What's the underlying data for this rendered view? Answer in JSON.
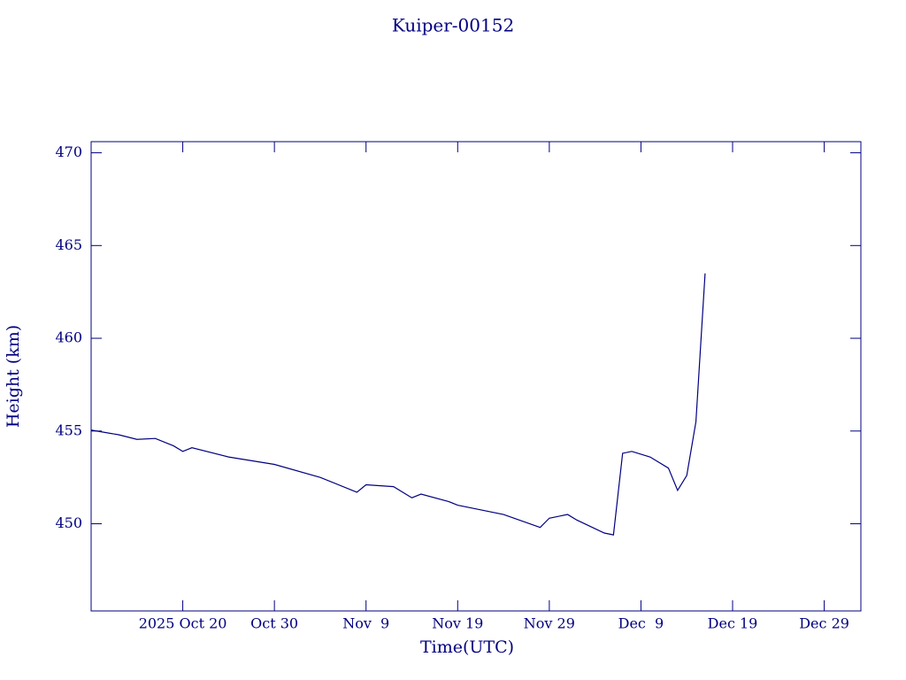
{
  "chart_data": {
    "type": "line",
    "title": "Kuiper-00152",
    "x_label": "Time(UTC)",
    "y_label": "Height (km)",
    "x": [
      "2025-10-10",
      "2025-10-13",
      "2025-10-15",
      "2025-10-17",
      "2025-10-19",
      "2025-10-20",
      "2025-10-21",
      "2025-10-25",
      "2025-10-30",
      "2025-11-04",
      "2025-11-08",
      "2025-11-09",
      "2025-11-12",
      "2025-11-14",
      "2025-11-15",
      "2025-11-18",
      "2025-11-19",
      "2025-11-24",
      "2025-11-28",
      "2025-11-29",
      "2025-12-01",
      "2025-12-02",
      "2025-12-05",
      "2025-12-06",
      "2025-12-07",
      "2025-12-08",
      "2025-12-10",
      "2025-12-12",
      "2025-12-13",
      "2025-12-14",
      "2025-12-15",
      "2025-12-16"
    ],
    "series": [
      {
        "name": "Height",
        "color": "#000080",
        "values": [
          455.05,
          454.8,
          454.55,
          454.6,
          454.2,
          453.9,
          454.1,
          453.6,
          453.2,
          452.5,
          451.7,
          452.1,
          452.0,
          451.4,
          451.6,
          451.2,
          451.0,
          450.5,
          449.8,
          450.3,
          450.5,
          450.2,
          449.5,
          449.4,
          453.8,
          453.9,
          453.6,
          453.0,
          451.8,
          452.6,
          455.5,
          463.5
        ]
      }
    ],
    "xlim": [
      "2025-10-10",
      "2026-01-02"
    ],
    "xticks": [
      {
        "value": "2025-10-20",
        "label": "2025 Oct 20"
      },
      {
        "value": "2025-10-30",
        "label": "Oct 30"
      },
      {
        "value": "2025-11-09",
        "label": "Nov  9"
      },
      {
        "value": "2025-11-19",
        "label": "Nov 19"
      },
      {
        "value": "2025-11-29",
        "label": "Nov 29"
      },
      {
        "value": "2025-12-09",
        "label": "Dec  9"
      },
      {
        "value": "2025-12-19",
        "label": "Dec 19"
      },
      {
        "value": "2025-12-29",
        "label": "Dec 29"
      }
    ],
    "ylim": [
      445.3,
      470.6
    ],
    "yticks": [
      450,
      455,
      460,
      465,
      470
    ],
    "grid": false
  }
}
